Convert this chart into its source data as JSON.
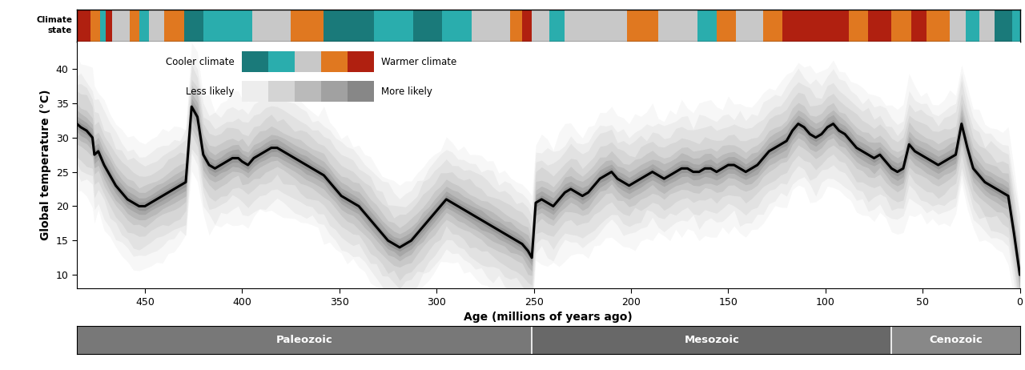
{
  "xlabel": "Age (millions of years ago)",
  "ylabel": "Global temperature (°C)",
  "xlim": [
    485,
    0
  ],
  "ylim": [
    8,
    44
  ],
  "yticks": [
    10,
    15,
    20,
    25,
    30,
    35,
    40
  ],
  "xticks": [
    450,
    400,
    350,
    300,
    250,
    200,
    150,
    100,
    50,
    0
  ],
  "eon_bars": [
    {
      "label": "Paleozoic",
      "xmin": 485,
      "xmax": 251,
      "color": "#787878"
    },
    {
      "label": "Mesozoic",
      "xmin": 251,
      "xmax": 66,
      "color": "#686868"
    },
    {
      "label": "Cenozoic",
      "xmin": 66,
      "xmax": 0,
      "color": "#888888"
    }
  ],
  "climate_bar_segments": [
    {
      "xmin": 485,
      "xmax": 478,
      "color": "#b02010"
    },
    {
      "xmin": 478,
      "xmax": 473,
      "color": "#e07820"
    },
    {
      "xmin": 473,
      "xmax": 470,
      "color": "#2aadad"
    },
    {
      "xmin": 470,
      "xmax": 467,
      "color": "#b02010"
    },
    {
      "xmin": 467,
      "xmax": 458,
      "color": "#c8c8c8"
    },
    {
      "xmin": 458,
      "xmax": 453,
      "color": "#e07820"
    },
    {
      "xmin": 453,
      "xmax": 448,
      "color": "#2aadad"
    },
    {
      "xmin": 448,
      "xmax": 440,
      "color": "#c8c8c8"
    },
    {
      "xmin": 440,
      "xmax": 430,
      "color": "#e07820"
    },
    {
      "xmin": 430,
      "xmax": 420,
      "color": "#1a7a7a"
    },
    {
      "xmin": 420,
      "xmax": 395,
      "color": "#2aadad"
    },
    {
      "xmin": 395,
      "xmax": 375,
      "color": "#c8c8c8"
    },
    {
      "xmin": 375,
      "xmax": 358,
      "color": "#e07820"
    },
    {
      "xmin": 358,
      "xmax": 332,
      "color": "#1a7a7a"
    },
    {
      "xmin": 332,
      "xmax": 312,
      "color": "#2aadad"
    },
    {
      "xmin": 312,
      "xmax": 297,
      "color": "#1a7a7a"
    },
    {
      "xmin": 297,
      "xmax": 282,
      "color": "#2aadad"
    },
    {
      "xmin": 282,
      "xmax": 262,
      "color": "#c8c8c8"
    },
    {
      "xmin": 262,
      "xmax": 256,
      "color": "#e07820"
    },
    {
      "xmin": 256,
      "xmax": 251,
      "color": "#b02010"
    },
    {
      "xmin": 251,
      "xmax": 242,
      "color": "#c8c8c8"
    },
    {
      "xmin": 242,
      "xmax": 234,
      "color": "#2aadad"
    },
    {
      "xmin": 234,
      "xmax": 202,
      "color": "#c8c8c8"
    },
    {
      "xmin": 202,
      "xmax": 186,
      "color": "#e07820"
    },
    {
      "xmin": 186,
      "xmax": 166,
      "color": "#c8c8c8"
    },
    {
      "xmin": 166,
      "xmax": 156,
      "color": "#2aadad"
    },
    {
      "xmin": 156,
      "xmax": 146,
      "color": "#e07820"
    },
    {
      "xmin": 146,
      "xmax": 132,
      "color": "#c8c8c8"
    },
    {
      "xmin": 132,
      "xmax": 122,
      "color": "#e07820"
    },
    {
      "xmin": 122,
      "xmax": 88,
      "color": "#b02010"
    },
    {
      "xmin": 88,
      "xmax": 78,
      "color": "#e07820"
    },
    {
      "xmin": 78,
      "xmax": 66,
      "color": "#b02010"
    },
    {
      "xmin": 66,
      "xmax": 56,
      "color": "#e07820"
    },
    {
      "xmin": 56,
      "xmax": 48,
      "color": "#b02010"
    },
    {
      "xmin": 48,
      "xmax": 36,
      "color": "#e07820"
    },
    {
      "xmin": 36,
      "xmax": 28,
      "color": "#c8c8c8"
    },
    {
      "xmin": 28,
      "xmax": 21,
      "color": "#2aadad"
    },
    {
      "xmin": 21,
      "xmax": 13,
      "color": "#c8c8c8"
    },
    {
      "xmin": 13,
      "xmax": 4,
      "color": "#1a7a7a"
    },
    {
      "xmin": 4,
      "xmax": 0,
      "color": "#2aadad"
    }
  ],
  "main_line_x": [
    485,
    483,
    480,
    477,
    474,
    471,
    468,
    465,
    462,
    459,
    456,
    453,
    450,
    447,
    444,
    441,
    438,
    435,
    432,
    429,
    426,
    423,
    420,
    417,
    414,
    411,
    408,
    405,
    402,
    400,
    397,
    394,
    391,
    388,
    385,
    382,
    379,
    476,
    373,
    370,
    367,
    364,
    361,
    358,
    355,
    352,
    349,
    346,
    343,
    340,
    337,
    334,
    331,
    328,
    325,
    322,
    319,
    316,
    313,
    310,
    307,
    304,
    301,
    298,
    295,
    292,
    289,
    286,
    283,
    280,
    277,
    274,
    271,
    268,
    265,
    262,
    259,
    256,
    253,
    251,
    249,
    246,
    243,
    240,
    237,
    234,
    231,
    228,
    225,
    222,
    219,
    216,
    213,
    210,
    207,
    204,
    201,
    198,
    195,
    192,
    189,
    186,
    183,
    180,
    177,
    174,
    171,
    168,
    165,
    162,
    159,
    156,
    153,
    150,
    147,
    144,
    141,
    138,
    135,
    132,
    129,
    126,
    123,
    120,
    117,
    114,
    111,
    108,
    105,
    102,
    99,
    96,
    93,
    90,
    87,
    84,
    81,
    78,
    75,
    72,
    69,
    66,
    63,
    60,
    57,
    54,
    51,
    48,
    45,
    42,
    39,
    36,
    33,
    30,
    27,
    24,
    21,
    18,
    15,
    12,
    9,
    6,
    3,
    0
  ],
  "main_line_y": [
    32.0,
    31.5,
    31.0,
    30.0,
    28.0,
    26.0,
    24.5,
    23.0,
    22.0,
    21.0,
    20.5,
    20.0,
    20.0,
    20.5,
    21.0,
    21.5,
    22.0,
    22.5,
    23.0,
    23.5,
    34.5,
    33.0,
    27.5,
    26.0,
    25.5,
    26.0,
    26.5,
    27.0,
    27.0,
    26.5,
    26.0,
    27.0,
    27.5,
    28.0,
    28.5,
    28.5,
    28.0,
    27.5,
    27.0,
    26.5,
    26.0,
    25.5,
    25.0,
    24.5,
    23.5,
    22.5,
    21.5,
    21.0,
    20.5,
    20.0,
    19.0,
    18.0,
    17.0,
    16.0,
    15.0,
    14.5,
    14.0,
    14.5,
    15.0,
    16.0,
    17.0,
    18.0,
    19.0,
    20.0,
    21.0,
    20.5,
    20.0,
    19.5,
    19.0,
    18.5,
    18.0,
    17.5,
    17.0,
    16.5,
    16.0,
    15.5,
    15.0,
    14.5,
    13.5,
    12.5,
    20.5,
    21.0,
    20.5,
    20.0,
    21.0,
    22.0,
    22.5,
    22.0,
    21.5,
    22.0,
    23.0,
    24.0,
    24.5,
    25.0,
    24.0,
    23.5,
    23.0,
    23.5,
    24.0,
    24.5,
    25.0,
    24.5,
    24.0,
    24.5,
    25.0,
    25.5,
    25.5,
    25.0,
    25.0,
    25.5,
    25.5,
    25.0,
    25.5,
    26.0,
    26.0,
    25.5,
    25.0,
    25.5,
    26.0,
    27.0,
    28.0,
    28.5,
    29.0,
    29.5,
    31.0,
    32.0,
    31.5,
    30.5,
    30.0,
    30.5,
    31.5,
    32.0,
    31.0,
    30.5,
    29.5,
    28.5,
    28.0,
    27.5,
    27.0,
    27.5,
    26.5,
    25.5,
    25.0,
    25.5,
    29.0,
    28.0,
    27.5,
    27.0,
    26.5,
    26.0,
    26.5,
    27.0,
    27.5,
    32.0,
    28.5,
    25.5,
    24.5,
    23.5,
    23.0,
    22.5,
    22.0,
    21.5,
    16.0,
    10.0
  ],
  "band_spreads": [
    9,
    7.5,
    6,
    4.5,
    3,
    2,
    1.2,
    0.6
  ],
  "band_alphas": [
    0.045,
    0.055,
    0.065,
    0.08,
    0.1,
    0.13,
    0.16,
    0.2
  ],
  "legend_climate_colors": [
    "#1a7a7a",
    "#2aadad",
    "#c8c8c8",
    "#e07820",
    "#b02010"
  ],
  "legend_gray_levels": [
    0.93,
    0.83,
    0.73,
    0.63,
    0.53
  ]
}
